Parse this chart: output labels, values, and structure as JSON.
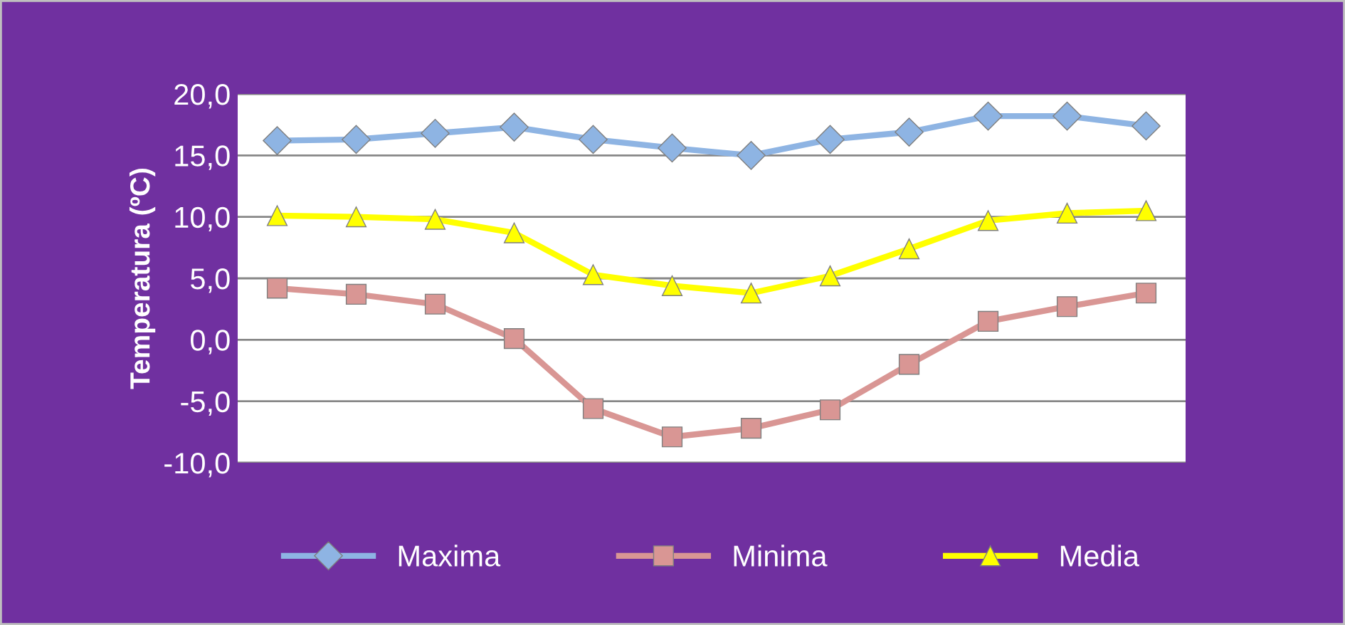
{
  "chart_data": {
    "type": "line",
    "ylabel": "Temperatura (ºC)",
    "categories": [
      null,
      null,
      null,
      null,
      null,
      null,
      null,
      null,
      null,
      null,
      null,
      null
    ],
    "series": [
      {
        "name": "Maxima",
        "color": "#8eb4e3",
        "marker": "diamond",
        "values": [
          16.2,
          16.3,
          16.8,
          17.3,
          16.3,
          15.6,
          15.0,
          16.3,
          16.9,
          18.2,
          18.2,
          17.4
        ]
      },
      {
        "name": "Minima",
        "color": "#d99694",
        "marker": "square",
        "values": [
          4.2,
          3.7,
          2.9,
          0.1,
          -5.6,
          -7.9,
          -7.2,
          -5.7,
          -2.0,
          1.5,
          2.7,
          3.8
        ]
      },
      {
        "name": "Media",
        "color": "#ffff00",
        "marker": "triangle",
        "values": [
          10.1,
          10.0,
          9.8,
          8.7,
          5.3,
          4.4,
          3.8,
          5.2,
          7.4,
          9.7,
          10.3,
          10.5
        ]
      }
    ],
    "ylim": [
      -10,
      20
    ],
    "yticks": [
      {
        "value": -10,
        "label": "-10,0"
      },
      {
        "value": -5,
        "label": "-5,0"
      },
      {
        "value": 0,
        "label": "0,0"
      },
      {
        "value": 5,
        "label": "5,0"
      },
      {
        "value": 10,
        "label": "10,0"
      },
      {
        "value": 15,
        "label": "15,0"
      },
      {
        "value": 20,
        "label": "20,0"
      }
    ],
    "grid": "y",
    "legend": "bottom",
    "tick_labels": "y",
    "line_style": "solid"
  }
}
